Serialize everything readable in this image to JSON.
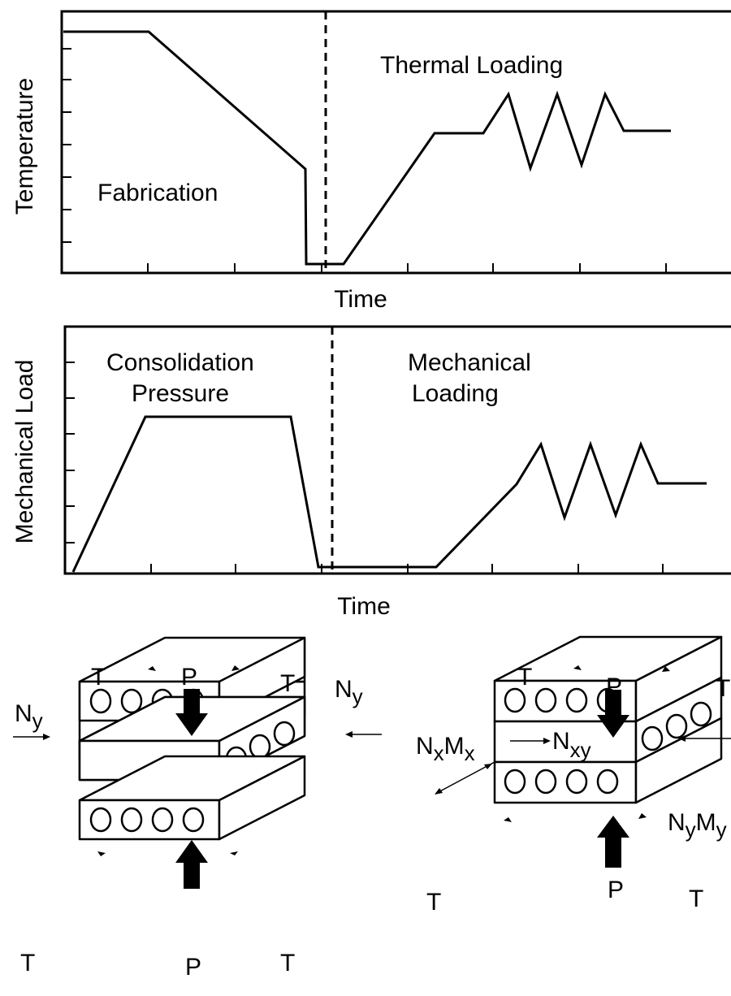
{
  "top_chart": {
    "ylabel": "Temperature",
    "xlabel": "Time",
    "phase_left": "Fabrication",
    "phase_right": "Thermal Loading"
  },
  "bottom_chart": {
    "ylabel": "Mechanical Load",
    "xlabel": "Time",
    "phase_left_line1": "Consolidation",
    "phase_left_line2": "Pressure",
    "phase_right_line1": "Mechanical",
    "phase_right_line2": "Loading"
  },
  "fabrication_stack": {
    "temperature_labels": [
      "T",
      "T",
      "T",
      "T"
    ],
    "pressure_labels": [
      "P",
      "P"
    ],
    "in_plane_load": "N",
    "in_plane_load_sub": "y"
  },
  "consolidated_laminate": {
    "temperature_labels": [
      "T",
      "T",
      "T",
      "T"
    ],
    "pressure_labels": [
      "P",
      "P"
    ],
    "nx": "N",
    "nx_sub": "x",
    "mx": "M",
    "mx_sub": "x",
    "nxy": "N",
    "nxy_sub": "xy",
    "ny": "N",
    "ny_sub": "y",
    "my": "M",
    "my_sub": "y"
  }
}
